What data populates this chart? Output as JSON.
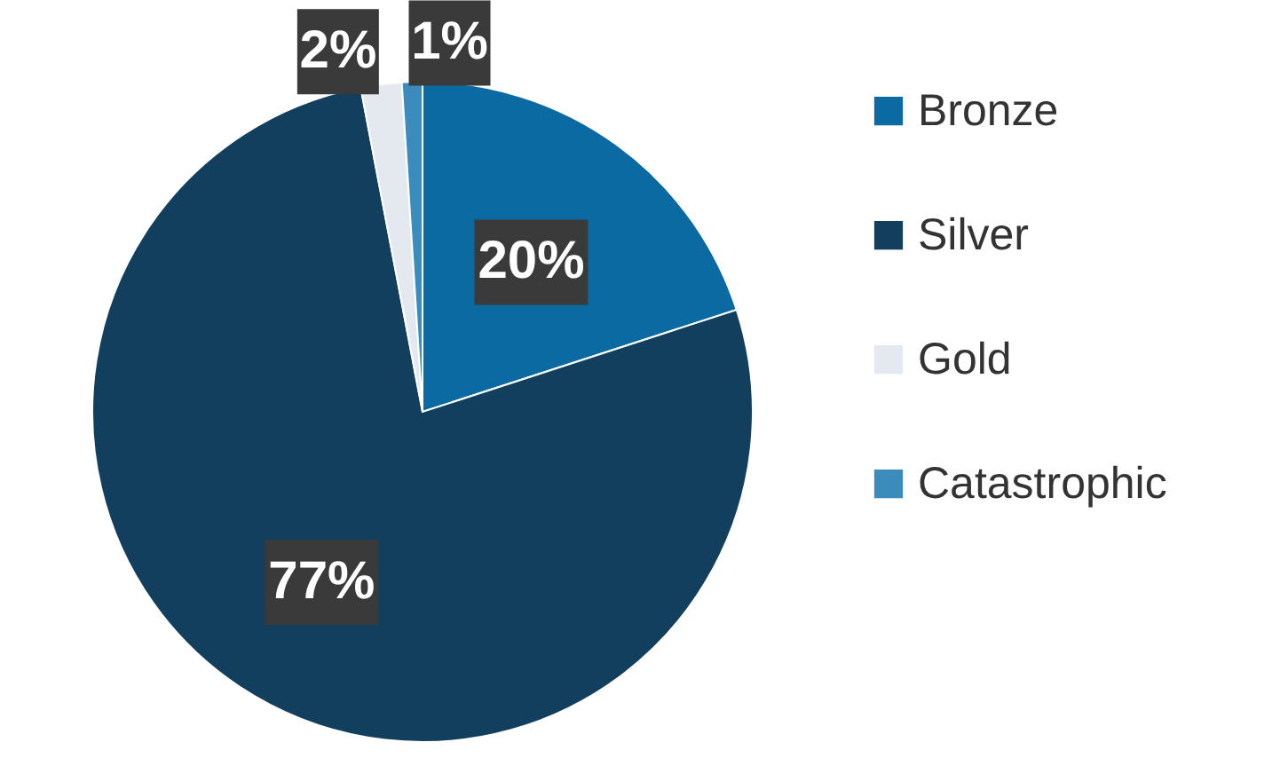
{
  "chart_data": {
    "type": "pie",
    "categories": [
      "Bronze",
      "Silver",
      "Gold",
      "Catastrophic"
    ],
    "values": [
      20,
      77,
      2,
      1
    ],
    "colors": [
      "#0b6aa2",
      "#123f5e",
      "#e3e9ee",
      "#3b8cbd"
    ],
    "value_labels": [
      "20%",
      "77%",
      "2%",
      "1%"
    ],
    "legend": "right"
  }
}
